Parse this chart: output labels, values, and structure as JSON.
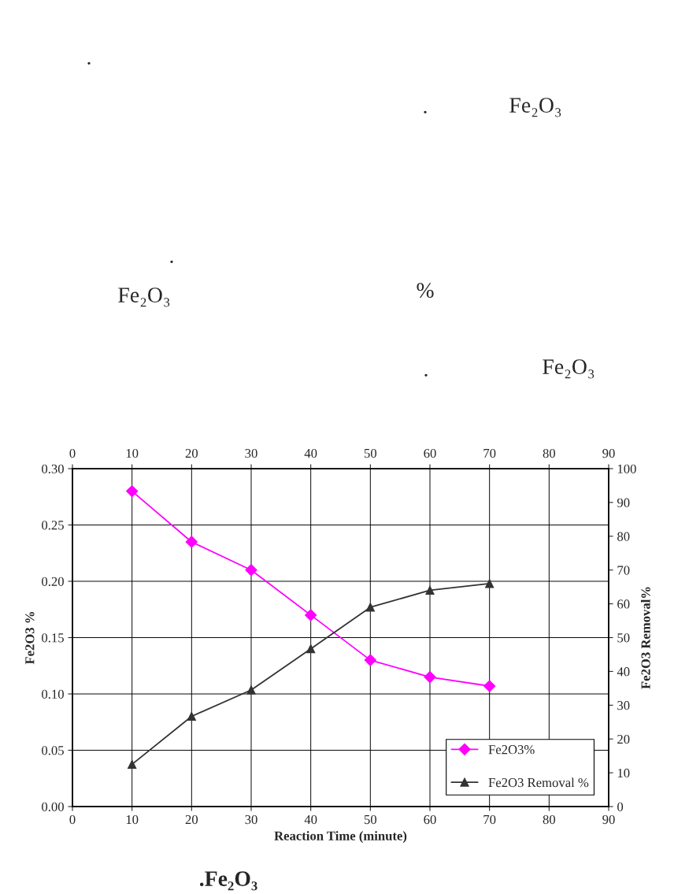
{
  "chart_data": {
    "type": "line",
    "xlabel": "Reaction Time (minute)",
    "ylabel": "Fe2O3 %",
    "y2label": "Fe2O3 Removal%",
    "x": [
      10,
      20,
      30,
      40,
      50,
      60,
      70
    ],
    "series": [
      {
        "name": "Fe2O3%",
        "color": "#ff00ff",
        "marker": "diamond",
        "values": [
          0.28,
          0.235,
          0.21,
          0.17,
          0.13,
          0.115,
          0.107
        ]
      },
      {
        "name": "Fe2O3 Removal %",
        "color": "#333333",
        "marker": "triangle",
        "axis": "y2",
        "values": [
          12.5,
          26.7,
          34.5,
          46.7,
          59,
          64,
          66
        ]
      }
    ],
    "xlim": [
      0,
      90
    ],
    "xticks": [
      0,
      10,
      20,
      30,
      40,
      50,
      60,
      70,
      80,
      90
    ],
    "x2lim": [
      0,
      90
    ],
    "x2ticks": [
      0,
      10,
      20,
      30,
      40,
      50,
      60,
      70,
      80,
      90
    ],
    "ylim": [
      0,
      0.3
    ],
    "yticks": [
      {
        "value": 0,
        "label": "0.00"
      },
      {
        "value": 0.05,
        "label": "0.05"
      },
      {
        "value": 0.1,
        "label": "0.10"
      },
      {
        "value": 0.15,
        "label": "0.15"
      },
      {
        "value": 0.2,
        "label": "0.20"
      },
      {
        "value": 0.25,
        "label": "0.25"
      },
      {
        "value": 0.3,
        "label": "0.30"
      }
    ],
    "y2lim": [
      0,
      100
    ],
    "y2ticks": [
      0,
      10,
      20,
      30,
      40,
      50,
      60,
      70,
      80,
      90,
      100
    ],
    "grid": true,
    "legend": "bottom right",
    "annotations": [
      ".",
      "Fe₂O₃",
      ".",
      ".",
      "Fe₂O₃",
      "%",
      "Fe₂O₃",
      ".",
      ".Fe₂O₃"
    ]
  }
}
